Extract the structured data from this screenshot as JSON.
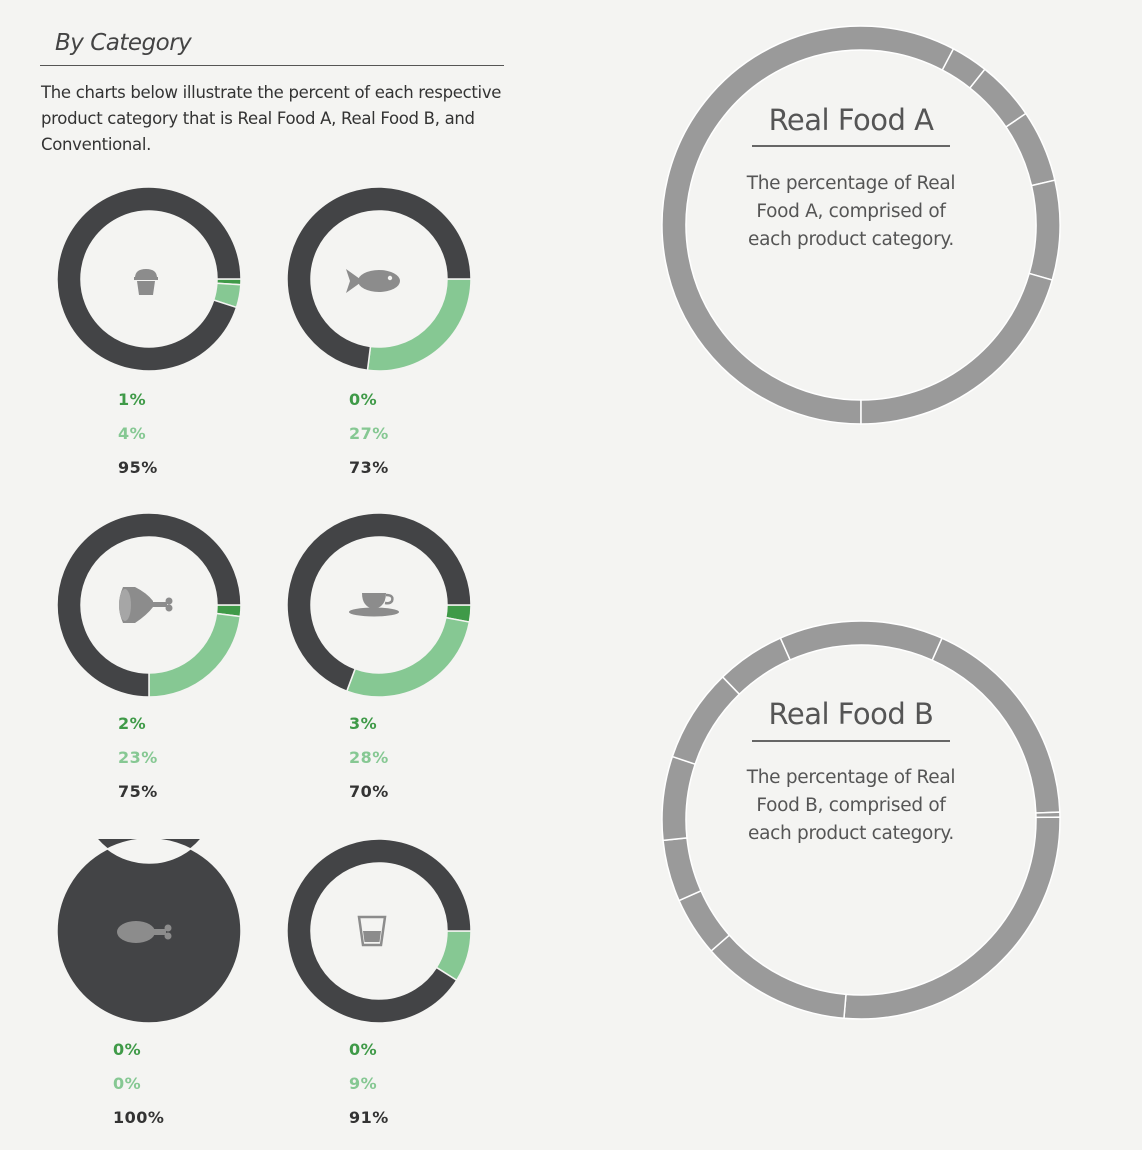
{
  "section": {
    "title": "By Category",
    "intro": "The charts below illustrate the percent of each respective product category that is Real Food A, Real Food B, and Conventional."
  },
  "colors": {
    "real_food_a": "#3f9a48",
    "real_food_b": "#86c893",
    "conventional": "#434446",
    "big_ring": "#9a9a9a"
  },
  "chart_data": [
    {
      "type": "pie",
      "category_icon": "muffin-icon",
      "values": [
        1,
        4,
        95
      ],
      "labels": [
        "1%",
        "4%",
        "95%"
      ]
    },
    {
      "type": "pie",
      "category_icon": "fish-icon",
      "values": [
        0,
        27,
        73
      ],
      "labels": [
        "0%",
        "27%",
        "73%"
      ]
    },
    {
      "type": "pie",
      "category_icon": "meat-icon",
      "values": [
        2,
        23,
        75
      ],
      "labels": [
        "2%",
        "23%",
        "75%"
      ]
    },
    {
      "type": "pie",
      "category_icon": "teacup-icon",
      "values": [
        3,
        28,
        70
      ],
      "labels": [
        "3%",
        "28%",
        "70%"
      ]
    },
    {
      "type": "pie",
      "category_icon": "poultry-icon",
      "values": [
        0,
        0,
        100
      ],
      "labels": [
        "0%",
        "0%",
        "100%"
      ]
    },
    {
      "type": "pie",
      "category_icon": "cup-icon",
      "values": [
        0,
        9,
        91
      ],
      "labels": [
        "0%",
        "9%",
        "91%"
      ]
    },
    {
      "type": "pie",
      "title": "Real Food A",
      "description": "The percentage of Real Food A, comprised of each product category.",
      "values": [
        75,
        3.9,
        6.3,
        7.6,
        10.5,
        26.7
      ]
    },
    {
      "type": "pie",
      "title": "Real Food B",
      "description": "The percentage of Real Food B, comprised of each product category.",
      "values": [
        17.7,
        0.4,
        26.6,
        12.2,
        4.8,
        5,
        6.8,
        7.6,
        5.6,
        13.3
      ]
    }
  ]
}
